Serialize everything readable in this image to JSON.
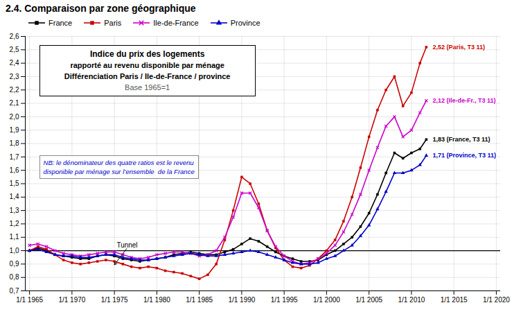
{
  "chart_data": {
    "type": "line",
    "title": "2.4. Comparaison par zone géographique",
    "x": [
      1965,
      1966,
      1967,
      1968,
      1969,
      1970,
      1971,
      1972,
      1973,
      1974,
      1975,
      1976,
      1977,
      1978,
      1979,
      1980,
      1981,
      1982,
      1983,
      1984,
      1985,
      1986,
      1987,
      1988,
      1989,
      1990,
      1991,
      1992,
      1993,
      1994,
      1995,
      1996,
      1997,
      1998,
      1999,
      2000,
      2001,
      2002,
      2003,
      2004,
      2005,
      2006,
      2007,
      2008,
      2009,
      2010,
      2011,
      2011.75
    ],
    "series": [
      {
        "name": "France",
        "color": "#000000",
        "marker": "square",
        "values": [
          1.0,
          1.02,
          1.0,
          0.97,
          0.96,
          0.95,
          0.94,
          0.94,
          0.96,
          0.97,
          0.96,
          0.94,
          0.93,
          0.92,
          0.93,
          0.94,
          0.95,
          0.97,
          0.98,
          0.99,
          0.98,
          0.97,
          0.97,
          0.99,
          1.01,
          1.05,
          1.09,
          1.07,
          1.03,
          0.99,
          0.96,
          0.94,
          0.92,
          0.92,
          0.93,
          0.97,
          1.0,
          1.05,
          1.1,
          1.18,
          1.28,
          1.42,
          1.58,
          1.73,
          1.69,
          1.73,
          1.76,
          1.83
        ]
      },
      {
        "name": "Paris",
        "color": "#cc0000",
        "marker": "square",
        "values": [
          1.0,
          1.03,
          1.01,
          0.97,
          0.93,
          0.91,
          0.9,
          0.91,
          0.92,
          0.93,
          0.92,
          0.9,
          0.88,
          0.87,
          0.88,
          0.87,
          0.85,
          0.84,
          0.83,
          0.81,
          0.79,
          0.82,
          0.9,
          1.08,
          1.3,
          1.55,
          1.5,
          1.35,
          1.15,
          1.02,
          0.93,
          0.88,
          0.87,
          0.89,
          0.94,
          1.0,
          1.08,
          1.22,
          1.4,
          1.62,
          1.85,
          2.05,
          2.2,
          2.3,
          2.08,
          2.18,
          2.4,
          2.52
        ]
      },
      {
        "name": "Ile-de-France",
        "color": "#cc00cc",
        "marker": "x",
        "values": [
          1.04,
          1.05,
          1.03,
          1.0,
          0.98,
          0.97,
          0.96,
          0.97,
          0.98,
          0.99,
          0.99,
          0.97,
          0.95,
          0.94,
          0.95,
          0.97,
          0.98,
          0.99,
          0.99,
          0.98,
          0.96,
          0.97,
          1.0,
          1.1,
          1.25,
          1.43,
          1.43,
          1.32,
          1.15,
          1.03,
          0.96,
          0.92,
          0.9,
          0.91,
          0.94,
          0.98,
          1.04,
          1.14,
          1.27,
          1.42,
          1.6,
          1.77,
          1.93,
          2.0,
          1.85,
          1.9,
          2.03,
          2.12
        ]
      },
      {
        "name": "Province",
        "color": "#0000cc",
        "marker": "triangle",
        "values": [
          1.0,
          1.01,
          0.99,
          0.97,
          0.96,
          0.96,
          0.95,
          0.95,
          0.96,
          0.97,
          0.97,
          0.95,
          0.94,
          0.93,
          0.93,
          0.94,
          0.95,
          0.96,
          0.97,
          0.98,
          0.97,
          0.96,
          0.96,
          0.97,
          0.98,
          0.99,
          1.0,
          0.99,
          0.97,
          0.95,
          0.93,
          0.91,
          0.9,
          0.9,
          0.91,
          0.94,
          0.96,
          1.0,
          1.04,
          1.11,
          1.19,
          1.31,
          1.44,
          1.58,
          1.58,
          1.6,
          1.64,
          1.71
        ]
      }
    ],
    "xlim": [
      1964.5,
      2020.5
    ],
    "xticks": [
      {
        "value": 1965,
        "label": "1/1 1965"
      },
      {
        "value": 1970,
        "label": "1/1 1970"
      },
      {
        "value": 1975,
        "label": "1/1 1975"
      },
      {
        "value": 1980,
        "label": "1/1 1980"
      },
      {
        "value": 1985,
        "label": "1/1 1985"
      },
      {
        "value": 1990,
        "label": "1/1 1990"
      },
      {
        "value": 1995,
        "label": "1/1 1995"
      },
      {
        "value": 2000,
        "label": "1/1 2000"
      },
      {
        "value": 2005,
        "label": "1/1 2005"
      },
      {
        "value": 2010,
        "label": "1/1 2010"
      },
      {
        "value": 2015,
        "label": "1/1 2015"
      },
      {
        "value": 2020,
        "label": "1/1 2020"
      }
    ],
    "ylim": [
      0.7,
      2.6
    ],
    "yticks": [
      {
        "value": 0.7,
        "label": "0,7"
      },
      {
        "value": 0.8,
        "label": "0,8"
      },
      {
        "value": 0.9,
        "label": "0,9"
      },
      {
        "value": 1.0,
        "label": "1,0"
      },
      {
        "value": 1.1,
        "label": "1,1"
      },
      {
        "value": 1.2,
        "label": "1,2"
      },
      {
        "value": 1.3,
        "label": "1,3"
      },
      {
        "value": 1.4,
        "label": "1,4"
      },
      {
        "value": 1.5,
        "label": "1,5"
      },
      {
        "value": 1.6,
        "label": "1,6"
      },
      {
        "value": 1.7,
        "label": "1,7"
      },
      {
        "value": 1.8,
        "label": "1,8"
      },
      {
        "value": 1.9,
        "label": "1,9"
      },
      {
        "value": 2.0,
        "label": "2,0"
      },
      {
        "value": 2.1,
        "label": "2,1"
      },
      {
        "value": 2.2,
        "label": "2,2"
      },
      {
        "value": 2.3,
        "label": "2,3"
      },
      {
        "value": 2.4,
        "label": "2,4"
      },
      {
        "value": 2.5,
        "label": "2,5"
      },
      {
        "value": 2.6,
        "label": "2,6"
      }
    ],
    "grid": true,
    "legend": "top",
    "hlines": [
      {
        "y": 1.0,
        "color": "#000000"
      }
    ],
    "annotations": [
      {
        "text": "Tunnel",
        "x": 1976.5,
        "y": 1.02,
        "arrow_x": 1975,
        "arrow_y": 0.895
      },
      {
        "text": "2,52 (Paris, T3 11)",
        "x": 2012.5,
        "y": 2.52,
        "color": "#cc0000"
      },
      {
        "text": "2,12 (Ile-de-Fr., T3 11)",
        "x": 2012.5,
        "y": 2.12,
        "color": "#cc00cc"
      },
      {
        "text": "1,83 (France, T3 11)",
        "x": 2012.5,
        "y": 1.83,
        "color": "#000000"
      },
      {
        "text": "1,71 (Province, T3 11)",
        "x": 2012.5,
        "y": 1.71,
        "color": "#0000cc"
      }
    ],
    "notes": [
      {
        "lines": [
          "Indice du prix des logements",
          "rapporté au revenu disponible par ménage",
          "Différenciation Paris / Ile-de-France / province",
          "Base 1965=1"
        ]
      },
      {
        "lines": [
          "NB: le dénominateur des quatre ratios est le revenu",
          "disponible par ménage sur l’ensemble  de la France"
        ],
        "color": "#0000cc"
      }
    ]
  }
}
